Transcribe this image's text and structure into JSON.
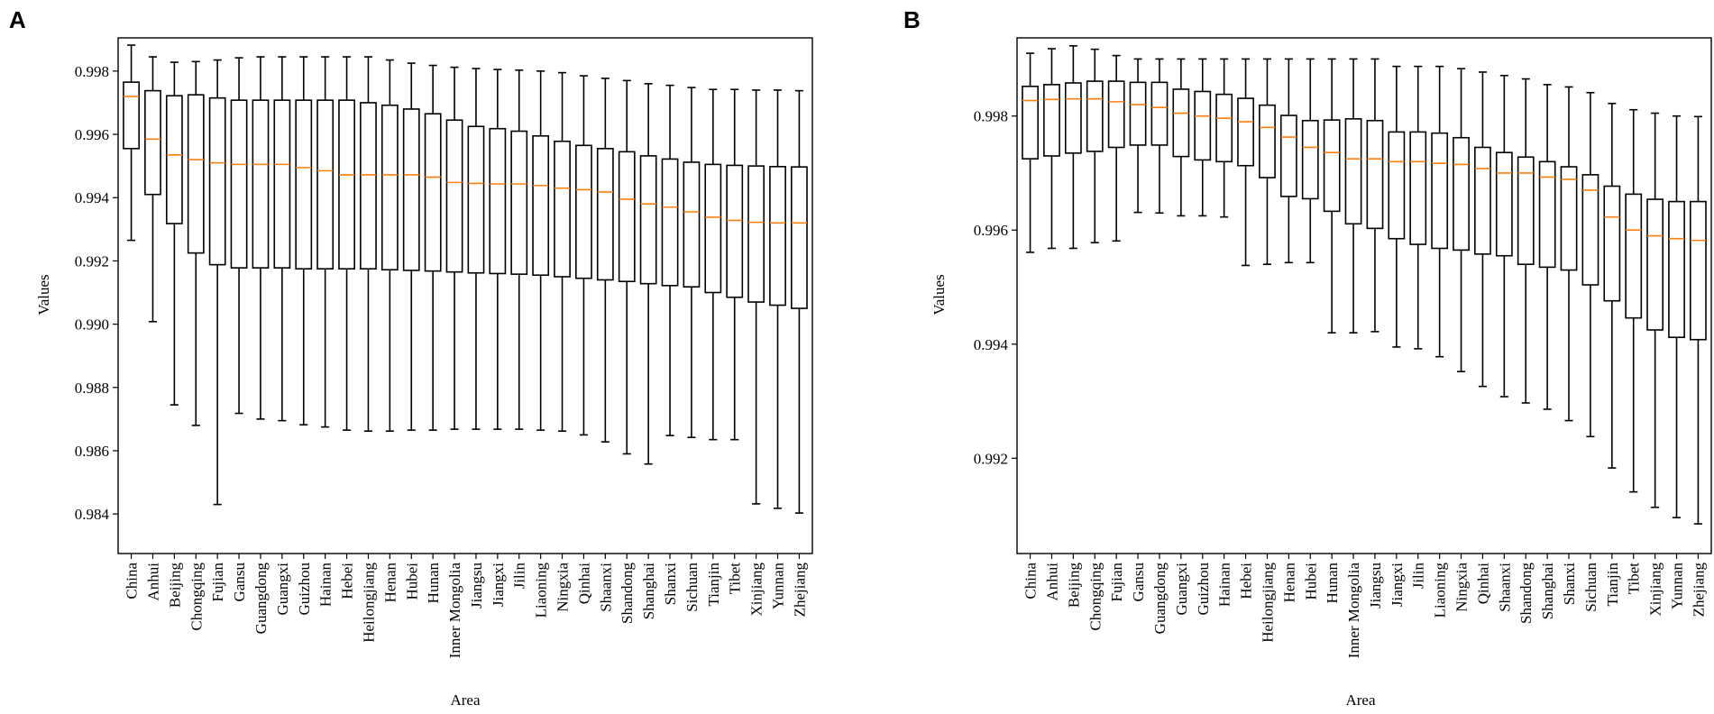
{
  "chart_data": [
    {
      "type": "boxplot",
      "panel": "A",
      "xlabel": "Area",
      "ylabel": "Values",
      "ylim": [
        0.98275,
        0.99905
      ],
      "yticks": [
        0.984,
        0.986,
        0.988,
        0.99,
        0.992,
        0.994,
        0.996,
        0.998
      ],
      "ytick_labels": [
        "0.984",
        "0.986",
        "0.988",
        "0.990",
        "0.992",
        "0.994",
        "0.996",
        "0.998"
      ],
      "categories": [
        "China",
        "Anhui",
        "Beijing",
        "Chongqing",
        "Fujian",
        "Gansu",
        "Guangdong",
        "Guangxi",
        "Guizhou",
        "Hainan",
        "Hebei",
        "Heilongjiang",
        "Henan",
        "Hubei",
        "Hunan",
        "Inner Mongolia",
        "Jiangsu",
        "Jiangxi",
        "Jilin",
        "Liaoning",
        "Ningxia",
        "Qinhai",
        "Shaanxi",
        "Shandong",
        "Shanghai",
        "Shanxi",
        "Sichuan",
        "Tianjin",
        "Tibet",
        "Xinjiang",
        "Yunnan",
        "Zhejiang"
      ],
      "boxes": [
        {
          "whislo": 0.99265,
          "q1": 0.99555,
          "med": 0.9972,
          "q3": 0.99765,
          "whishi": 0.99882
        },
        {
          "whislo": 0.99008,
          "q1": 0.9941,
          "med": 0.99585,
          "q3": 0.99738,
          "whishi": 0.99845
        },
        {
          "whislo": 0.98745,
          "q1": 0.99318,
          "med": 0.99535,
          "q3": 0.99722,
          "whishi": 0.99828
        },
        {
          "whislo": 0.9868,
          "q1": 0.99225,
          "med": 0.9952,
          "q3": 0.99725,
          "whishi": 0.9983
        },
        {
          "whislo": 0.9843,
          "q1": 0.99188,
          "med": 0.9951,
          "q3": 0.99715,
          "whishi": 0.99835
        },
        {
          "whislo": 0.98718,
          "q1": 0.99178,
          "med": 0.99505,
          "q3": 0.99708,
          "whishi": 0.99842
        },
        {
          "whislo": 0.987,
          "q1": 0.99178,
          "med": 0.99505,
          "q3": 0.99708,
          "whishi": 0.99845
        },
        {
          "whislo": 0.98695,
          "q1": 0.99178,
          "med": 0.99505,
          "q3": 0.99708,
          "whishi": 0.99845
        },
        {
          "whislo": 0.98682,
          "q1": 0.99175,
          "med": 0.99495,
          "q3": 0.99708,
          "whishi": 0.99845
        },
        {
          "whislo": 0.98675,
          "q1": 0.99175,
          "med": 0.99485,
          "q3": 0.99708,
          "whishi": 0.99845
        },
        {
          "whislo": 0.98665,
          "q1": 0.99175,
          "med": 0.99472,
          "q3": 0.99708,
          "whishi": 0.99845
        },
        {
          "whislo": 0.98662,
          "q1": 0.99175,
          "med": 0.99472,
          "q3": 0.997,
          "whishi": 0.99845
        },
        {
          "whislo": 0.98662,
          "q1": 0.99172,
          "med": 0.99472,
          "q3": 0.99692,
          "whishi": 0.99835
        },
        {
          "whislo": 0.98665,
          "q1": 0.9917,
          "med": 0.99472,
          "q3": 0.9968,
          "whishi": 0.99825
        },
        {
          "whislo": 0.98665,
          "q1": 0.99168,
          "med": 0.99465,
          "q3": 0.99665,
          "whishi": 0.99818
        },
        {
          "whislo": 0.98668,
          "q1": 0.99165,
          "med": 0.99448,
          "q3": 0.99645,
          "whishi": 0.99812
        },
        {
          "whislo": 0.98668,
          "q1": 0.99162,
          "med": 0.99445,
          "q3": 0.99625,
          "whishi": 0.99808
        },
        {
          "whislo": 0.98668,
          "q1": 0.9916,
          "med": 0.99443,
          "q3": 0.99618,
          "whishi": 0.99805
        },
        {
          "whislo": 0.98668,
          "q1": 0.99158,
          "med": 0.99443,
          "q3": 0.9961,
          "whishi": 0.99803
        },
        {
          "whislo": 0.98665,
          "q1": 0.99155,
          "med": 0.99438,
          "q3": 0.99595,
          "whishi": 0.998
        },
        {
          "whislo": 0.98662,
          "q1": 0.9915,
          "med": 0.9943,
          "q3": 0.99578,
          "whishi": 0.99795
        },
        {
          "whislo": 0.9865,
          "q1": 0.99145,
          "med": 0.99425,
          "q3": 0.99565,
          "whishi": 0.99785
        },
        {
          "whislo": 0.98628,
          "q1": 0.9914,
          "med": 0.99418,
          "q3": 0.99555,
          "whishi": 0.99777
        },
        {
          "whislo": 0.9859,
          "q1": 0.99135,
          "med": 0.99395,
          "q3": 0.99545,
          "whishi": 0.9977
        },
        {
          "whislo": 0.98558,
          "q1": 0.99128,
          "med": 0.9938,
          "q3": 0.99532,
          "whishi": 0.9976
        },
        {
          "whislo": 0.98648,
          "q1": 0.99122,
          "med": 0.9937,
          "q3": 0.99522,
          "whishi": 0.99755
        },
        {
          "whislo": 0.98642,
          "q1": 0.99118,
          "med": 0.99355,
          "q3": 0.99512,
          "whishi": 0.99748
        },
        {
          "whislo": 0.98635,
          "q1": 0.991,
          "med": 0.99338,
          "q3": 0.99505,
          "whishi": 0.99742
        },
        {
          "whislo": 0.98635,
          "q1": 0.99085,
          "med": 0.99328,
          "q3": 0.99502,
          "whishi": 0.99742
        },
        {
          "whislo": 0.98432,
          "q1": 0.9907,
          "med": 0.99322,
          "q3": 0.995,
          "whishi": 0.9974
        },
        {
          "whislo": 0.98418,
          "q1": 0.9906,
          "med": 0.9932,
          "q3": 0.99498,
          "whishi": 0.9974
        },
        {
          "whislo": 0.98403,
          "q1": 0.9905,
          "med": 0.9932,
          "q3": 0.99497,
          "whishi": 0.99738
        }
      ]
    },
    {
      "type": "boxplot",
      "panel": "B",
      "xlabel": "Area",
      "ylabel": "Values",
      "ylim": [
        0.99033,
        0.99937
      ],
      "yticks": [
        0.992,
        0.994,
        0.996,
        0.998
      ],
      "ytick_labels": [
        "0.992",
        "0.994",
        "0.996",
        "0.998"
      ],
      "categories": [
        "China",
        "Anhui",
        "Beijing",
        "Chongqing",
        "Fujian",
        "Gansu",
        "Guangdong",
        "Guangxi",
        "Guizhou",
        "Hainan",
        "Hebei",
        "Heilongjiang",
        "Henan",
        "Hubei",
        "Hunan",
        "Inner Mongolia",
        "Jiangsu",
        "Jiangxi",
        "Jilin",
        "Liaoning",
        "Ningxia",
        "Qinhai",
        "Shaanxi",
        "Shandong",
        "Shanghai",
        "Shanxi",
        "Sichuan",
        "Tianjin",
        "Tibet",
        "Xinjiang",
        "Yunnan",
        "Zhejiang"
      ],
      "boxes": [
        {
          "whislo": 0.99561,
          "q1": 0.99725,
          "med": 0.99827,
          "q3": 0.99852,
          "whishi": 0.9991
        },
        {
          "whislo": 0.99568,
          "q1": 0.9973,
          "med": 0.99829,
          "q3": 0.99855,
          "whishi": 0.99918
        },
        {
          "whislo": 0.99568,
          "q1": 0.99735,
          "med": 0.9983,
          "q3": 0.99858,
          "whishi": 0.99923
        },
        {
          "whislo": 0.99578,
          "q1": 0.99738,
          "med": 0.9983,
          "q3": 0.99861,
          "whishi": 0.99917
        },
        {
          "whislo": 0.99581,
          "q1": 0.99745,
          "med": 0.99825,
          "q3": 0.99861,
          "whishi": 0.99906
        },
        {
          "whislo": 0.99631,
          "q1": 0.99749,
          "med": 0.9982,
          "q3": 0.99859,
          "whishi": 0.999
        },
        {
          "whislo": 0.9963,
          "q1": 0.99749,
          "med": 0.99815,
          "q3": 0.99859,
          "whishi": 0.999
        },
        {
          "whislo": 0.99625,
          "q1": 0.99729,
          "med": 0.99805,
          "q3": 0.99847,
          "whishi": 0.999
        },
        {
          "whislo": 0.99625,
          "q1": 0.99723,
          "med": 0.998,
          "q3": 0.99843,
          "whishi": 0.999
        },
        {
          "whislo": 0.99623,
          "q1": 0.9972,
          "med": 0.99796,
          "q3": 0.99838,
          "whishi": 0.999
        },
        {
          "whislo": 0.99538,
          "q1": 0.99713,
          "med": 0.9979,
          "q3": 0.99831,
          "whishi": 0.999
        },
        {
          "whislo": 0.9954,
          "q1": 0.99692,
          "med": 0.9978,
          "q3": 0.99819,
          "whishi": 0.999
        },
        {
          "whislo": 0.99543,
          "q1": 0.99659,
          "med": 0.99763,
          "q3": 0.99801,
          "whishi": 0.999
        },
        {
          "whislo": 0.99543,
          "q1": 0.99655,
          "med": 0.99745,
          "q3": 0.99792,
          "whishi": 0.999
        },
        {
          "whislo": 0.9942,
          "q1": 0.99633,
          "med": 0.99736,
          "q3": 0.99793,
          "whishi": 0.999
        },
        {
          "whislo": 0.9942,
          "q1": 0.99611,
          "med": 0.99725,
          "q3": 0.99795,
          "whishi": 0.999
        },
        {
          "whislo": 0.99422,
          "q1": 0.99603,
          "med": 0.99725,
          "q3": 0.99792,
          "whishi": 0.999
        },
        {
          "whislo": 0.99395,
          "q1": 0.99585,
          "med": 0.9972,
          "q3": 0.99772,
          "whishi": 0.99887
        },
        {
          "whislo": 0.99392,
          "q1": 0.99575,
          "med": 0.9972,
          "q3": 0.99772,
          "whishi": 0.99887
        },
        {
          "whislo": 0.99378,
          "q1": 0.99568,
          "med": 0.99717,
          "q3": 0.9977,
          "whishi": 0.99887
        },
        {
          "whislo": 0.99352,
          "q1": 0.99565,
          "med": 0.99715,
          "q3": 0.99762,
          "whishi": 0.99883
        },
        {
          "whislo": 0.99326,
          "q1": 0.99558,
          "med": 0.99708,
          "q3": 0.99745,
          "whishi": 0.99877
        },
        {
          "whislo": 0.99308,
          "q1": 0.99555,
          "med": 0.997,
          "q3": 0.99736,
          "whishi": 0.99871
        },
        {
          "whislo": 0.99297,
          "q1": 0.9954,
          "med": 0.997,
          "q3": 0.99728,
          "whishi": 0.99865
        },
        {
          "whislo": 0.99286,
          "q1": 0.99535,
          "med": 0.99693,
          "q3": 0.9972,
          "whishi": 0.99855
        },
        {
          "whislo": 0.99266,
          "q1": 0.9953,
          "med": 0.99689,
          "q3": 0.99711,
          "whishi": 0.99851
        },
        {
          "whislo": 0.99238,
          "q1": 0.99504,
          "med": 0.9967,
          "q3": 0.99697,
          "whishi": 0.99841
        },
        {
          "whislo": 0.99183,
          "q1": 0.99476,
          "med": 0.99623,
          "q3": 0.99677,
          "whishi": 0.99822
        },
        {
          "whislo": 0.99141,
          "q1": 0.99446,
          "med": 0.996,
          "q3": 0.99663,
          "whishi": 0.99811
        },
        {
          "whislo": 0.99114,
          "q1": 0.99425,
          "med": 0.9959,
          "q3": 0.99654,
          "whishi": 0.99805
        },
        {
          "whislo": 0.99096,
          "q1": 0.99412,
          "med": 0.99585,
          "q3": 0.9965,
          "whishi": 0.998
        },
        {
          "whislo": 0.99085,
          "q1": 0.99408,
          "med": 0.99582,
          "q3": 0.9965,
          "whishi": 0.99799
        }
      ]
    }
  ],
  "colors": {
    "box": "#000000",
    "median": "#ff7f0e",
    "background": "#ffffff"
  }
}
